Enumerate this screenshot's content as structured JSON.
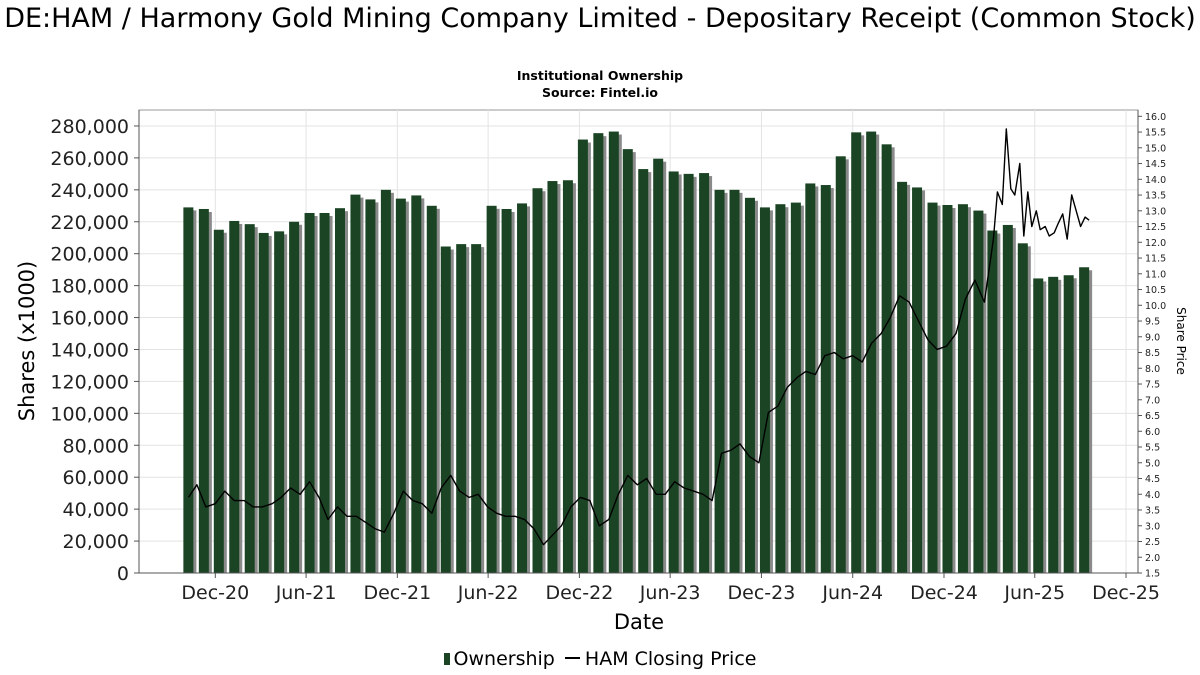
{
  "header": {
    "title": "DE:HAM / Harmony Gold Mining Company Limited - Depositary Receipt (Common Stock)",
    "subtitle": "Institutional Ownership",
    "source": "Source: Fintel.io"
  },
  "legend": {
    "ownership_label": "Ownership",
    "price_label": "HAM Closing Price"
  },
  "colors": {
    "bar": "#1b4424",
    "bar_shadow": "#8a8a8a",
    "price_line": "#000000",
    "grid": "#e3e3e3"
  },
  "chart_data": {
    "type": "bar",
    "xlabel": "Date",
    "ylabel": "Shares (x1000)",
    "y2label": "Share Price",
    "ylim": [
      0,
      290000
    ],
    "y2lim": [
      1.5,
      16.2
    ],
    "yticks": [
      0,
      20000,
      40000,
      60000,
      80000,
      100000,
      120000,
      140000,
      160000,
      180000,
      200000,
      220000,
      240000,
      260000,
      280000
    ],
    "y2ticks": [
      1.5,
      2.0,
      2.5,
      3.0,
      3.5,
      4.0,
      4.5,
      5.0,
      5.5,
      6.0,
      6.5,
      7.0,
      7.5,
      8.0,
      8.5,
      9.0,
      9.5,
      10.0,
      10.5,
      11.0,
      11.5,
      12.0,
      12.5,
      13.0,
      13.5,
      14.0,
      14.5,
      15.0,
      15.5,
      16.0
    ],
    "xlim": [
      "2020-07-01",
      "2025-12-25"
    ],
    "xticks": [
      {
        "date": "2020-12-01",
        "label": "Dec-20"
      },
      {
        "date": "2021-06-01",
        "label": "Jun-21"
      },
      {
        "date": "2021-12-01",
        "label": "Dec-21"
      },
      {
        "date": "2022-06-01",
        "label": "Jun-22"
      },
      {
        "date": "2022-12-01",
        "label": "Dec-22"
      },
      {
        "date": "2023-06-01",
        "label": "Jun-23"
      },
      {
        "date": "2023-12-01",
        "label": "Dec-23"
      },
      {
        "date": "2024-06-01",
        "label": "Jun-24"
      },
      {
        "date": "2024-12-01",
        "label": "Dec-24"
      },
      {
        "date": "2025-06-01",
        "label": "Jun-25"
      },
      {
        "date": "2025-12-01",
        "label": "Dec-25"
      }
    ],
    "grid": true,
    "legend_position": "bottom",
    "series": [
      {
        "name": "Ownership",
        "type": "bar",
        "x": [
          "2020-10-08",
          "2020-11-08",
          "2020-12-08",
          "2021-01-08",
          "2021-02-08",
          "2021-03-08",
          "2021-04-08",
          "2021-05-08",
          "2021-06-08",
          "2021-07-08",
          "2021-08-08",
          "2021-09-08",
          "2021-10-08",
          "2021-11-08",
          "2021-12-08",
          "2022-01-08",
          "2022-02-08",
          "2022-03-08",
          "2022-04-08",
          "2022-05-08",
          "2022-06-08",
          "2022-07-08",
          "2022-08-08",
          "2022-09-08",
          "2022-10-08",
          "2022-11-08",
          "2022-12-08",
          "2023-01-08",
          "2023-02-08",
          "2023-03-08",
          "2023-04-08",
          "2023-05-08",
          "2023-06-08",
          "2023-07-08",
          "2023-08-08",
          "2023-09-08",
          "2023-10-08",
          "2023-11-08",
          "2023-12-08",
          "2024-01-08",
          "2024-02-08",
          "2024-03-08",
          "2024-04-08",
          "2024-05-08",
          "2024-06-08",
          "2024-07-08",
          "2024-08-08",
          "2024-09-08",
          "2024-10-08",
          "2024-11-08",
          "2024-12-08",
          "2025-01-08",
          "2025-02-08",
          "2025-03-08",
          "2025-04-08",
          "2025-05-08",
          "2025-06-08",
          "2025-07-08",
          "2025-08-08",
          "2025-09-08"
        ],
        "values": [
          229000,
          228000,
          215000,
          220500,
          218500,
          213000,
          214000,
          220000,
          225500,
          225500,
          228500,
          237000,
          234000,
          240000,
          234500,
          236500,
          230000,
          204500,
          206000,
          206000,
          230000,
          228000,
          231500,
          241000,
          245500,
          246000,
          271500,
          275500,
          276500,
          265500,
          253000,
          259500,
          251500,
          250000,
          250500,
          240000,
          240000,
          235000,
          229000,
          231000,
          232000,
          244000,
          243000,
          261000,
          276000,
          276500,
          268500,
          245000,
          241500,
          232000,
          230500,
          231000,
          227000,
          214500,
          218000,
          206500,
          184500,
          185500,
          186500,
          191500
        ]
      },
      {
        "name": "HAM Closing Price",
        "type": "line",
        "x": [
          "2020-10-08",
          "2020-10-25",
          "2020-11-12",
          "2020-12-01",
          "2020-12-20",
          "2021-01-08",
          "2021-01-28",
          "2021-02-15",
          "2021-03-05",
          "2021-03-25",
          "2021-04-12",
          "2021-05-01",
          "2021-05-20",
          "2021-06-08",
          "2021-06-27",
          "2021-07-15",
          "2021-08-03",
          "2021-08-22",
          "2021-09-10",
          "2021-09-29",
          "2021-10-18",
          "2021-11-05",
          "2021-11-24",
          "2021-12-13",
          "2022-01-01",
          "2022-01-20",
          "2022-02-08",
          "2022-02-27",
          "2022-03-18",
          "2022-04-05",
          "2022-04-24",
          "2022-05-12",
          "2022-05-31",
          "2022-06-18",
          "2022-07-06",
          "2022-07-25",
          "2022-08-13",
          "2022-09-01",
          "2022-09-20",
          "2022-10-08",
          "2022-10-26",
          "2022-11-14",
          "2022-12-03",
          "2022-12-22",
          "2023-01-10",
          "2023-01-29",
          "2023-02-17",
          "2023-03-08",
          "2023-03-27",
          "2023-04-15",
          "2023-05-04",
          "2023-05-22",
          "2023-06-10",
          "2023-06-29",
          "2023-07-18",
          "2023-08-06",
          "2023-08-24",
          "2023-09-12",
          "2023-10-01",
          "2023-10-19",
          "2023-11-07",
          "2023-11-26",
          "2023-12-15",
          "2024-01-03",
          "2024-01-22",
          "2024-02-10",
          "2024-02-28",
          "2024-03-18",
          "2024-04-06",
          "2024-04-25",
          "2024-05-13",
          "2024-06-01",
          "2024-06-20",
          "2024-07-09",
          "2024-07-28",
          "2024-08-15",
          "2024-09-03",
          "2024-09-22",
          "2024-10-11",
          "2024-10-30",
          "2024-11-17",
          "2024-12-06",
          "2024-12-25",
          "2025-01-13",
          "2025-02-01",
          "2025-02-20",
          "2025-03-10",
          "2025-03-18",
          "2025-03-28",
          "2025-04-05",
          "2025-04-14",
          "2025-04-22",
          "2025-05-02",
          "2025-05-10",
          "2025-05-18",
          "2025-05-26",
          "2025-06-04",
          "2025-06-12",
          "2025-06-22",
          "2025-06-30",
          "2025-07-10",
          "2025-07-18",
          "2025-07-27",
          "2025-08-05",
          "2025-08-14",
          "2025-08-23",
          "2025-09-01",
          "2025-09-10",
          "2025-09-18"
        ],
        "values": [
          3.9,
          4.3,
          3.6,
          3.7,
          4.1,
          3.8,
          3.8,
          3.6,
          3.6,
          3.7,
          3.9,
          4.2,
          4.0,
          4.4,
          3.9,
          3.2,
          3.6,
          3.3,
          3.3,
          3.1,
          2.9,
          2.8,
          3.4,
          4.1,
          3.8,
          3.7,
          3.4,
          4.2,
          4.6,
          4.1,
          3.9,
          4.0,
          3.6,
          3.4,
          3.3,
          3.3,
          3.2,
          2.9,
          2.4,
          2.7,
          3.0,
          3.6,
          3.9,
          3.8,
          3.0,
          3.2,
          4.0,
          4.6,
          4.3,
          4.5,
          4.0,
          4.0,
          4.4,
          4.2,
          4.1,
          4.0,
          3.8,
          5.3,
          5.4,
          5.6,
          5.2,
          5.0,
          6.6,
          6.8,
          7.4,
          7.7,
          7.9,
          7.8,
          8.4,
          8.5,
          8.3,
          8.4,
          8.2,
          8.8,
          9.1,
          9.6,
          10.3,
          10.1,
          9.5,
          8.9,
          8.6,
          8.7,
          9.1,
          10.2,
          10.8,
          10.1,
          12.1,
          13.6,
          13.2,
          15.6,
          13.7,
          13.5,
          14.5,
          12.2,
          13.6,
          12.5,
          13.0,
          12.4,
          12.5,
          12.2,
          12.3,
          12.6,
          12.9,
          12.1,
          13.5,
          13.0,
          12.5,
          12.8,
          12.7
        ]
      }
    ]
  }
}
